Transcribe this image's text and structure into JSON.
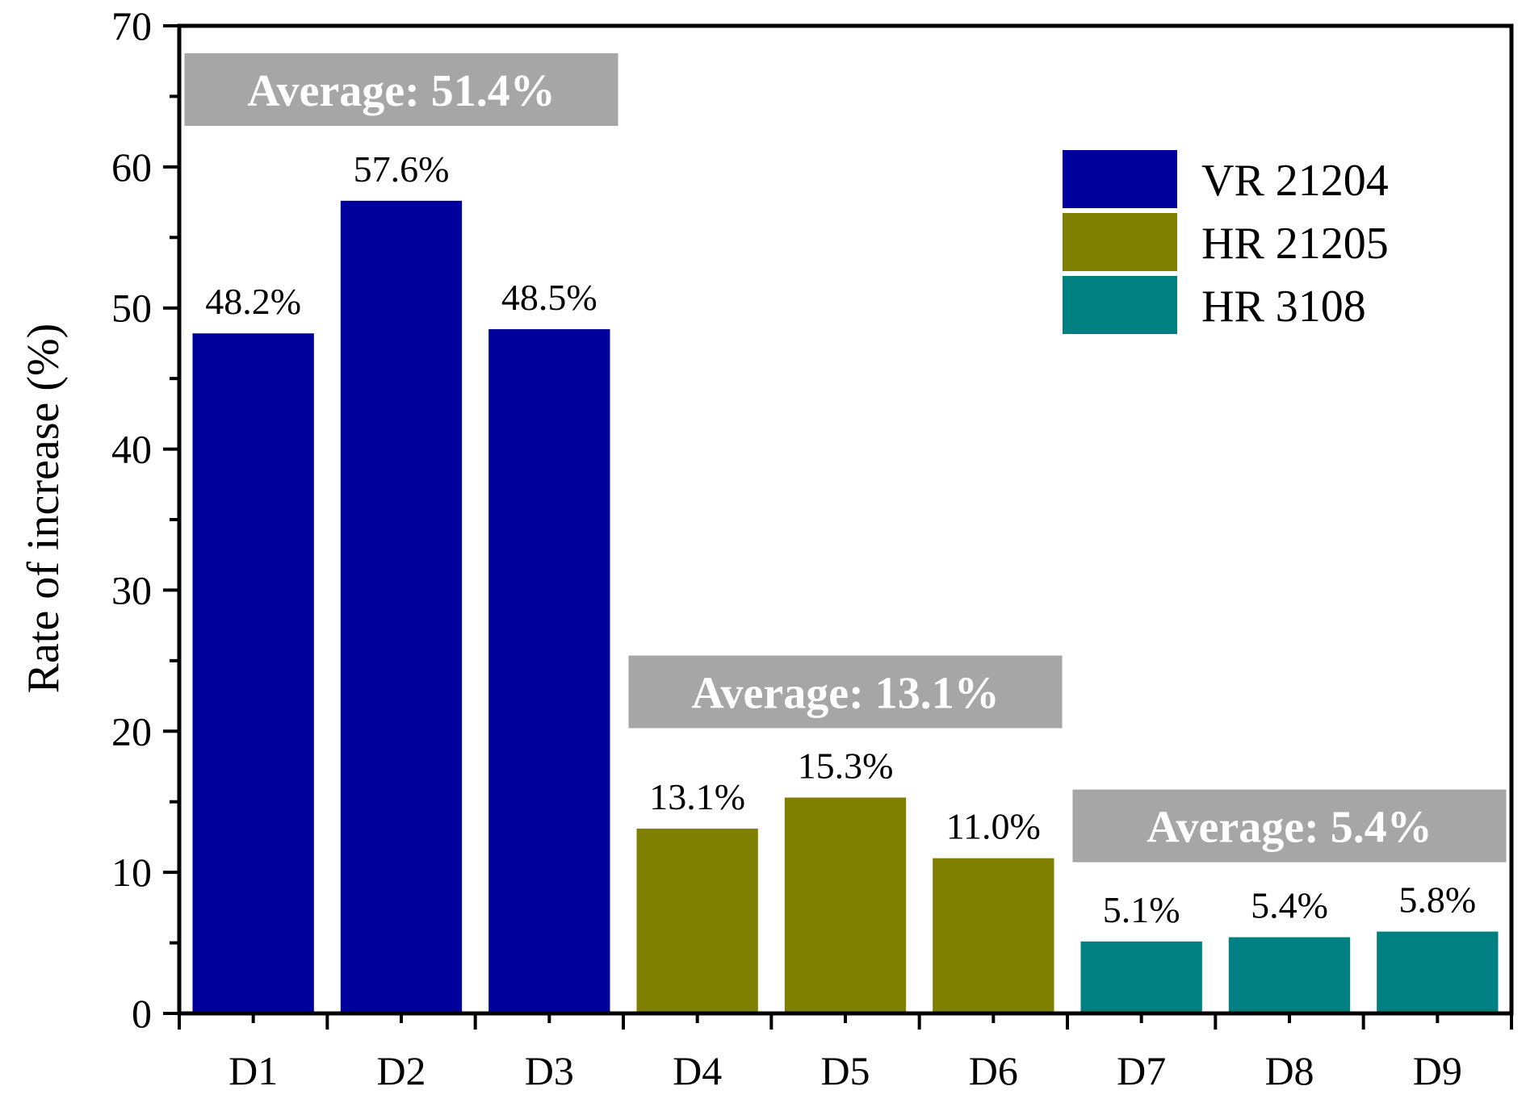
{
  "chart_data": {
    "type": "bar",
    "title": "",
    "xlabel": "",
    "ylabel": "Rate of increase (%)",
    "ylim": [
      0,
      70
    ],
    "yticks": [
      0,
      10,
      20,
      30,
      40,
      50,
      60,
      70
    ],
    "grid": false,
    "categories": [
      "D1",
      "D2",
      "D3",
      "D4",
      "D5",
      "D6",
      "D7",
      "D8",
      "D9"
    ],
    "values": [
      48.2,
      57.6,
      48.5,
      13.1,
      15.3,
      11.0,
      5.1,
      5.4,
      5.8
    ],
    "labels": [
      "48.2%",
      "57.6%",
      "48.5%",
      "13.1%",
      "15.3%",
      "11.0%",
      "5.1%",
      "5.4%",
      "5.8%"
    ],
    "series": [
      {
        "name": "VR 21204",
        "color": "#00009c",
        "categories": [
          "D1",
          "D2",
          "D3"
        ]
      },
      {
        "name": "HR 21205",
        "color": "#7f7f00",
        "categories": [
          "D4",
          "D5",
          "D6"
        ]
      },
      {
        "name": "HR 3108",
        "color": "#008080",
        "categories": [
          "D7",
          "D8",
          "D9"
        ]
      }
    ],
    "legend_position": "top-right",
    "annotations": [
      {
        "text": "Average: 51.4%",
        "group": 0,
        "value": 51.4
      },
      {
        "text": "Average: 13.1%",
        "group": 1,
        "value": 13.1
      },
      {
        "text": "Average: 5.4%",
        "group": 2,
        "value": 5.4
      }
    ],
    "annotation_color": "#a6a6a6"
  }
}
